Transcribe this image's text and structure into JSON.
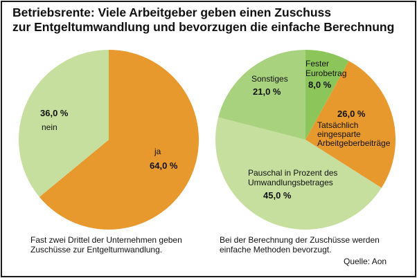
{
  "title": {
    "line1": "Betriebsrente: Viele Arbeitgeber geben einen Zuschuss",
    "line2": "zur Entgeltumwandlung und bevorzugen die einfache Berechnung"
  },
  "chart_data": [
    {
      "type": "pie",
      "title": "",
      "slices": [
        {
          "label": "ja",
          "value": 64.0,
          "value_label": "64,0 %",
          "color": "#e8992e"
        },
        {
          "label": "nein",
          "value": 36.0,
          "value_label": "36,0 %",
          "color": "#c7df9e"
        }
      ]
    },
    {
      "type": "pie",
      "title": "",
      "slices": [
        {
          "label": "Fester Eurobetrag",
          "value": 8.0,
          "value_label": "8,0 %",
          "color": "#8cc65a"
        },
        {
          "label": "Tatsächlich eingesparte Arbeitgeberbeiträge",
          "value": 26.0,
          "value_label": "26,0 %",
          "color": "#e8992e"
        },
        {
          "label": "Pauschal in Prozent des Umwandlungsbetrages",
          "value": 45.0,
          "value_label": "45,0 %",
          "color": "#c7df9e"
        },
        {
          "label": "Sonstiges",
          "value": 21.0,
          "value_label": "21,0 %",
          "color": "#a9d27e"
        }
      ]
    }
  ],
  "captions": {
    "left_line1": "Fast zwei Drittel der Unternehmen geben",
    "left_line2": "Zuschüsse zur Entgeltumwandlung.",
    "right_line1": "Bei der Berechnung der Zuschüsse werden",
    "right_line2": "einfache Methoden bevorzugt.",
    "source": "Quelle: Aon"
  }
}
